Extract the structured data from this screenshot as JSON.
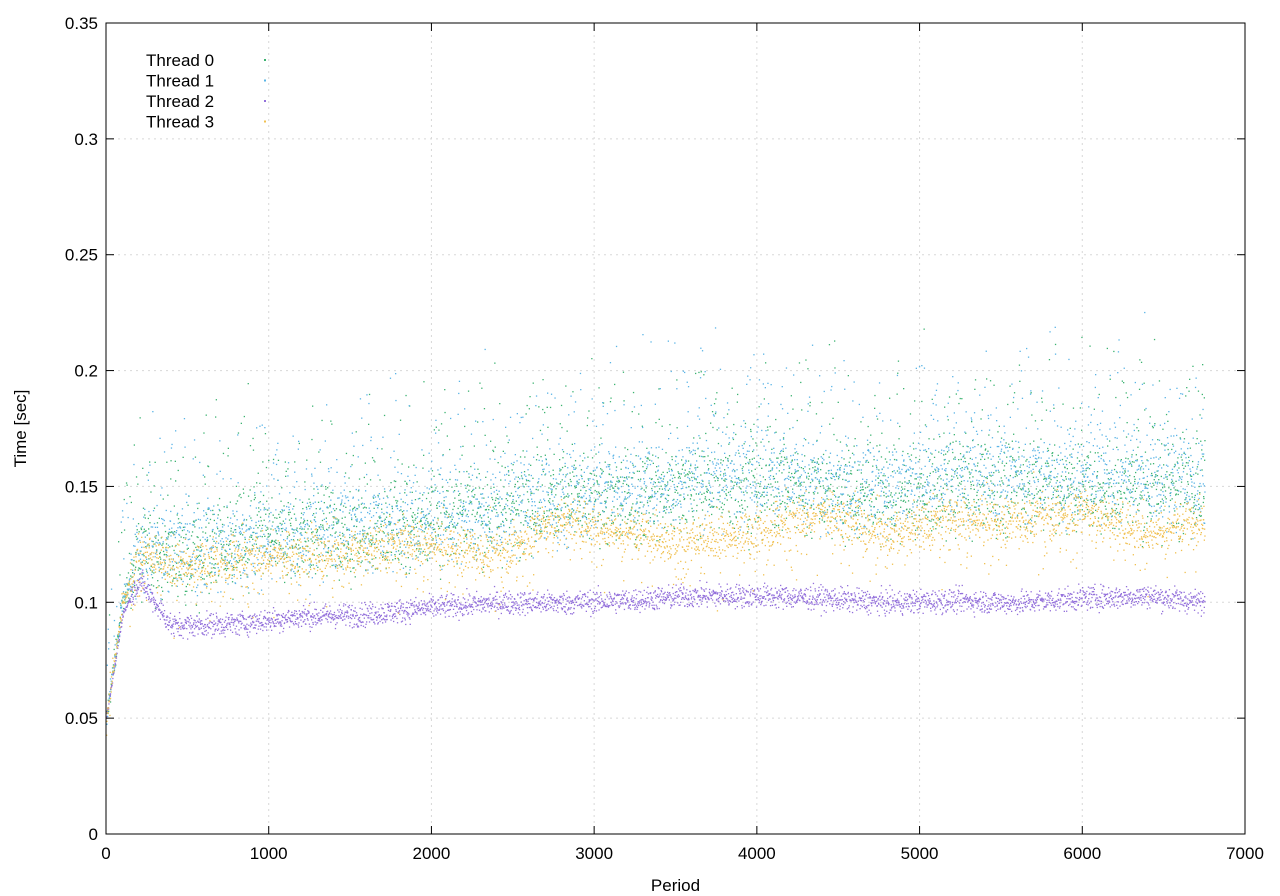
{
  "chart_data": {
    "type": "scatter",
    "title": "",
    "xlabel": "Period",
    "ylabel": "Time [sec]",
    "xlim": [
      0,
      7000
    ],
    "ylim": [
      0,
      0.35
    ],
    "xticks": [
      "0",
      "1000",
      "2000",
      "3000",
      "4000",
      "5000",
      "6000",
      "7000"
    ],
    "yticks": [
      "0",
      "0.05",
      "0.1",
      "0.15",
      "0.2",
      "0.25",
      "0.3",
      "0.35"
    ],
    "grid": true,
    "legend_position": "top-left",
    "series": [
      {
        "name": "Thread 0",
        "color": "#3cb371",
        "x": [
          0,
          100,
          200,
          400,
          800,
          1200,
          1600,
          2000,
          2400,
          2800,
          3200,
          3600,
          4000,
          4400,
          4800,
          5200,
          5600,
          6000,
          6400,
          6750
        ],
        "y": [
          0.05,
          0.1,
          0.12,
          0.12,
          0.125,
          0.13,
          0.13,
          0.135,
          0.14,
          0.145,
          0.145,
          0.15,
          0.15,
          0.15,
          0.145,
          0.15,
          0.15,
          0.15,
          0.15,
          0.15
        ]
      },
      {
        "name": "Thread 1",
        "color": "#5ab4e6",
        "x": [
          0,
          100,
          200,
          400,
          800,
          1200,
          1600,
          2000,
          2400,
          2800,
          3200,
          3600,
          4000,
          4400,
          4800,
          5200,
          5600,
          6000,
          6400,
          6750
        ],
        "y": [
          0.05,
          0.1,
          0.12,
          0.125,
          0.125,
          0.13,
          0.135,
          0.135,
          0.14,
          0.145,
          0.15,
          0.155,
          0.155,
          0.15,
          0.15,
          0.155,
          0.155,
          0.155,
          0.155,
          0.15
        ]
      },
      {
        "name": "Thread 2",
        "color": "#9370db",
        "x": [
          0,
          100,
          200,
          400,
          800,
          1200,
          1600,
          2000,
          2400,
          2800,
          3200,
          3600,
          4000,
          4400,
          4800,
          5200,
          5600,
          6000,
          6400,
          6750
        ],
        "y": [
          0.05,
          0.095,
          0.11,
          0.09,
          0.091,
          0.094,
          0.095,
          0.098,
          0.1,
          0.1,
          0.101,
          0.103,
          0.103,
          0.102,
          0.1,
          0.101,
          0.1,
          0.102,
          0.103,
          0.1
        ]
      },
      {
        "name": "Thread 3",
        "color": "#f0c050",
        "x": [
          0,
          100,
          200,
          400,
          800,
          1200,
          1600,
          2000,
          2400,
          2800,
          3200,
          3600,
          4000,
          4400,
          4800,
          5200,
          5600,
          6000,
          6400,
          6750
        ],
        "y": [
          0.05,
          0.1,
          0.12,
          0.115,
          0.118,
          0.12,
          0.123,
          0.125,
          0.12,
          0.135,
          0.13,
          0.125,
          0.13,
          0.138,
          0.13,
          0.135,
          0.135,
          0.138,
          0.13,
          0.135
        ]
      }
    ]
  }
}
